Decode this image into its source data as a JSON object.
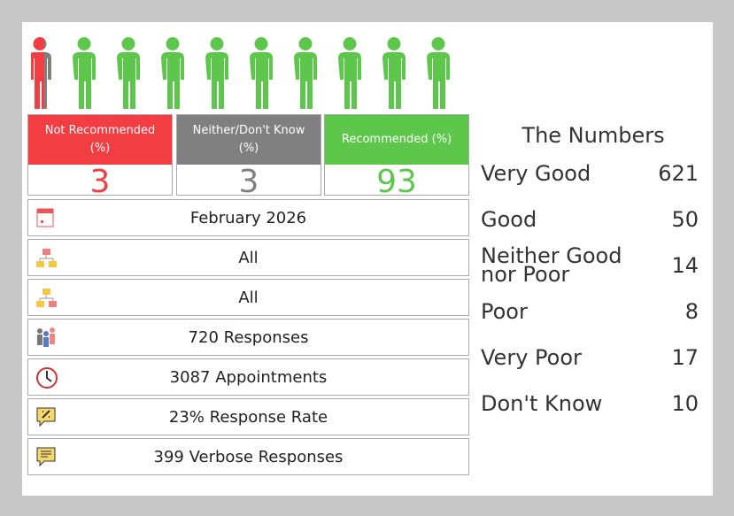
{
  "summary": [
    {
      "label": "Not Recommended (%)",
      "value": 3
    },
    {
      "label": "Neither/Don't Know (%)",
      "value": 3
    },
    {
      "label": "Recommended (%)",
      "value": 93
    }
  ],
  "details": [
    "February 2026",
    "All",
    "All",
    "720 Responses",
    "3087 Appointments",
    "23% Response Rate",
    "399 Verbose Responses"
  ],
  "numbers": {
    "title": "The Numbers",
    "rows": [
      {
        "label": "Very Good",
        "value": 621
      },
      {
        "label": "Good",
        "value": 50
      },
      {
        "label": "Neither Good nor Poor",
        "value": 14
      },
      {
        "label": "Poor",
        "value": 8
      },
      {
        "label": "Very Poor",
        "value": 17
      },
      {
        "label": "Don't Know",
        "value": 10
      }
    ]
  }
}
